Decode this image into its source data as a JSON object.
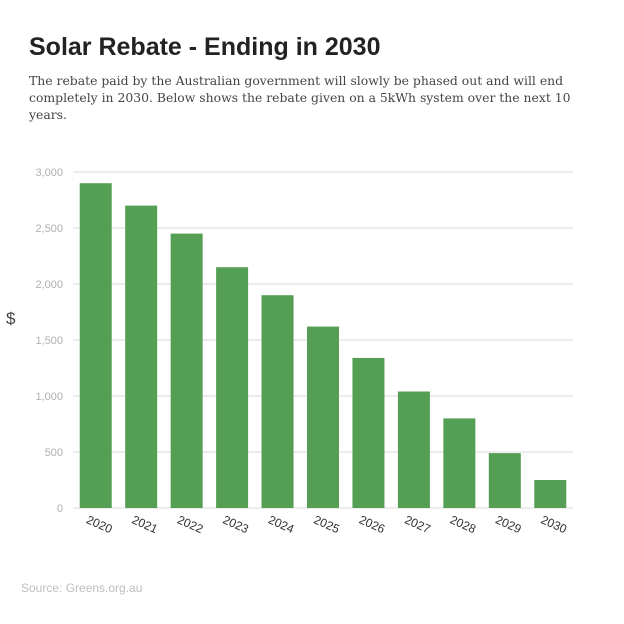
{
  "header": {
    "title": "Solar Rebate - Ending in 2030",
    "subtitle": "The rebate paid by the Australian government will slowly be phased out and will end completely in 2030. Below shows the rebate given on a 5kWh system over the next 10 years."
  },
  "footer": {
    "source": "Source: Greens.org.au"
  },
  "colors": {
    "bar": "#559f55",
    "grid": "#d9d9d9",
    "tick_text": "#b0b0b0",
    "category_text": "#333333"
  },
  "chart_data": {
    "type": "bar",
    "title": "",
    "xlabel": "",
    "ylabel": "$",
    "categories": [
      "2020",
      "2021",
      "2022",
      "2023",
      "2024",
      "2025",
      "2026",
      "2027",
      "2028",
      "2029",
      "2030"
    ],
    "values": [
      2900,
      2700,
      2450,
      2150,
      1900,
      1620,
      1340,
      1040,
      800,
      490,
      250
    ],
    "ylim": [
      0,
      3000
    ],
    "yticks": [
      0,
      500,
      1000,
      1500,
      2000,
      2500,
      3000
    ],
    "ytick_labels": [
      "0",
      "500",
      "1,000",
      "1,500",
      "2,000",
      "2,500",
      "3,000"
    ],
    "grid": true,
    "legend": "none"
  }
}
